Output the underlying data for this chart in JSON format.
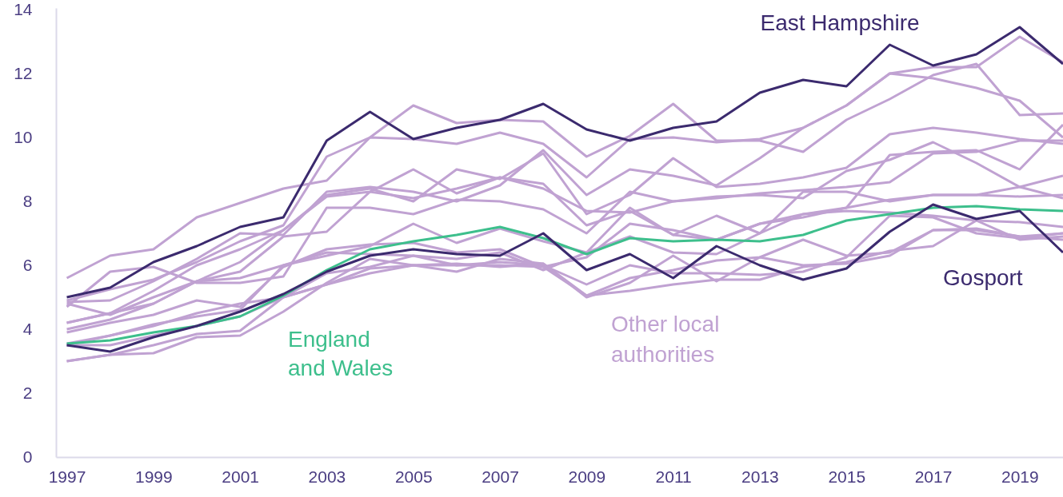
{
  "chart_data": {
    "type": "line",
    "x": [
      1997,
      1998,
      1999,
      2000,
      2001,
      2002,
      2003,
      2004,
      2005,
      2006,
      2007,
      2008,
      2009,
      2010,
      2011,
      2012,
      2013,
      2014,
      2015,
      2016,
      2017,
      2018,
      2019,
      2020
    ],
    "xlim": [
      1996.75,
      2020
    ],
    "xticks": [
      1997,
      1999,
      2001,
      2003,
      2005,
      2007,
      2009,
      2011,
      2013,
      2015,
      2017,
      2019
    ],
    "ylim": [
      0,
      14.05
    ],
    "yticks": [
      0,
      2,
      4,
      6,
      8,
      10,
      12,
      14
    ],
    "grid": false,
    "annotations": [
      "Other local authorities"
    ],
    "series": [
      {
        "color": "#c0a2d2",
        "values": [
          5.6,
          6.3,
          6.5,
          7.5,
          7.95,
          8.4,
          8.65,
          10.0,
          9.95,
          9.8,
          10.15,
          9.8,
          8.75,
          9.95,
          10.0,
          9.85,
          9.95,
          10.3,
          11.0,
          12.0,
          11.85,
          11.55,
          11.15,
          10.0
        ]
      },
      {
        "color": "#c0a2d2",
        "values": [
          4.9,
          5.25,
          5.55,
          6.1,
          6.75,
          7.25,
          9.4,
          10.0,
          11.0,
          10.45,
          10.55,
          10.5,
          9.4,
          10.05,
          11.05,
          9.9,
          9.9,
          9.55,
          10.55,
          11.2,
          11.95,
          12.3,
          10.7,
          10.75
        ]
      },
      {
        "color": "#c0a2d2",
        "values": [
          4.85,
          4.9,
          5.5,
          6.2,
          7.0,
          6.95,
          8.3,
          8.45,
          8.3,
          8.0,
          8.5,
          9.6,
          8.2,
          9.0,
          8.8,
          8.5,
          9.35,
          10.3,
          11.0,
          12.0,
          12.2,
          12.2,
          13.15,
          12.35
        ]
      },
      {
        "color": "#c0a2d2",
        "values": [
          4.8,
          4.45,
          5.0,
          5.5,
          6.1,
          7.1,
          8.2,
          8.4,
          8.0,
          9.0,
          8.7,
          9.5,
          7.6,
          8.2,
          9.35,
          8.45,
          8.55,
          8.75,
          9.05,
          10.1,
          10.3,
          10.15,
          9.95,
          9.8
        ]
      },
      {
        "color": "#c0a2d2",
        "values": [
          4.7,
          5.8,
          5.95,
          5.45,
          5.45,
          5.65,
          7.8,
          7.8,
          7.6,
          8.05,
          8.0,
          7.75,
          7.0,
          8.3,
          8.0,
          8.1,
          8.25,
          8.35,
          8.45,
          8.6,
          9.5,
          9.55,
          9.9,
          9.9
        ]
      },
      {
        "color": "#c0a2d2",
        "values": [
          4.2,
          4.5,
          5.2,
          6.0,
          6.5,
          7.1,
          8.15,
          8.3,
          9.0,
          8.25,
          8.75,
          8.4,
          7.7,
          7.65,
          8.0,
          8.15,
          8.2,
          8.1,
          8.95,
          9.3,
          9.85,
          9.2,
          8.45,
          8.1
        ]
      },
      {
        "color": "#c0a2d2",
        "values": [
          4.0,
          4.3,
          4.8,
          5.5,
          5.8,
          6.9,
          7.05,
          8.3,
          8.1,
          8.4,
          8.75,
          8.55,
          7.25,
          7.7,
          6.95,
          6.8,
          7.3,
          7.5,
          7.8,
          9.45,
          9.55,
          9.6,
          9.0,
          10.4
        ]
      },
      {
        "color": "#c0a2d2",
        "values": [
          4.2,
          4.5,
          4.8,
          5.5,
          5.6,
          6.0,
          6.3,
          6.6,
          7.3,
          6.7,
          7.15,
          6.75,
          6.4,
          7.8,
          6.95,
          7.55,
          7.0,
          8.3,
          8.3,
          8.0,
          8.2,
          8.2,
          8.45,
          8.8
        ]
      },
      {
        "color": "#c0a2d2",
        "values": [
          3.9,
          4.2,
          4.45,
          4.9,
          4.7,
          5.95,
          6.5,
          6.65,
          6.7,
          6.4,
          6.5,
          5.95,
          6.25,
          7.3,
          7.1,
          6.8,
          7.3,
          7.6,
          7.8,
          8.05,
          8.2,
          8.2,
          8.15,
          8.2
        ]
      },
      {
        "color": "#c0a2d2",
        "values": [
          3.5,
          3.8,
          4.1,
          4.5,
          4.8,
          5.0,
          5.75,
          5.95,
          6.3,
          6.0,
          6.1,
          6.0,
          5.4,
          6.0,
          5.75,
          5.75,
          5.7,
          5.8,
          6.25,
          7.55,
          7.5,
          7.0,
          6.85,
          7.0
        ]
      },
      {
        "color": "#c0a2d2",
        "values": [
          3.0,
          3.2,
          3.25,
          3.75,
          3.8,
          4.55,
          5.45,
          6.2,
          6.0,
          6.05,
          5.95,
          6.05,
          5.05,
          5.6,
          5.85,
          6.15,
          6.25,
          6.8,
          6.3,
          6.4,
          7.1,
          7.1,
          6.9,
          6.8
        ]
      },
      {
        "color": "#c0a2d2",
        "values": [
          3.0,
          3.2,
          3.5,
          3.85,
          3.95,
          5.0,
          5.4,
          5.75,
          6.0,
          6.0,
          6.0,
          5.95,
          5.05,
          5.2,
          5.4,
          5.55,
          5.55,
          5.95,
          6.1,
          6.45,
          6.6,
          7.4,
          6.8,
          6.9
        ]
      },
      {
        "color": "#c0a2d2",
        "values": [
          3.5,
          3.5,
          3.8,
          4.1,
          4.4,
          5.0,
          5.4,
          5.9,
          6.0,
          5.8,
          6.2,
          6.05,
          5.0,
          5.45,
          6.3,
          5.5,
          6.25,
          6.0,
          6.05,
          6.3,
          7.1,
          7.15,
          6.9,
          7.0
        ]
      },
      {
        "color": "#c0a2d2",
        "values": [
          3.55,
          3.8,
          4.15,
          4.4,
          4.6,
          6.0,
          6.4,
          6.35,
          6.3,
          6.2,
          6.4,
          5.85,
          6.4,
          6.9,
          6.4,
          6.35,
          7.0,
          7.6,
          7.7,
          7.65,
          7.55,
          7.4,
          7.35,
          7.2
        ]
      },
      {
        "name": "England and Wales",
        "color": "#3dbf8c",
        "values": [
          3.55,
          3.65,
          3.9,
          4.1,
          4.4,
          5.05,
          5.85,
          6.5,
          6.75,
          6.95,
          7.2,
          6.85,
          6.35,
          6.85,
          6.75,
          6.8,
          6.75,
          6.95,
          7.4,
          7.6,
          7.8,
          7.85,
          7.75,
          7.7
        ]
      },
      {
        "name": "Gosport",
        "color": "#3b2a6e",
        "values": [
          3.5,
          3.3,
          3.75,
          4.1,
          4.55,
          5.1,
          5.8,
          6.3,
          6.5,
          6.35,
          6.3,
          7.0,
          5.85,
          6.35,
          5.6,
          6.6,
          6.0,
          5.55,
          5.9,
          7.05,
          7.9,
          7.45,
          7.7,
          6.4
        ]
      },
      {
        "name": "East Hampshire",
        "color": "#3b2a6e",
        "values": [
          5.0,
          5.3,
          6.1,
          6.6,
          7.2,
          7.5,
          9.9,
          10.8,
          9.95,
          10.3,
          10.55,
          11.05,
          10.25,
          9.9,
          10.3,
          10.5,
          11.4,
          11.8,
          11.6,
          12.9,
          12.25,
          12.6,
          13.45,
          12.3
        ]
      }
    ]
  }
}
